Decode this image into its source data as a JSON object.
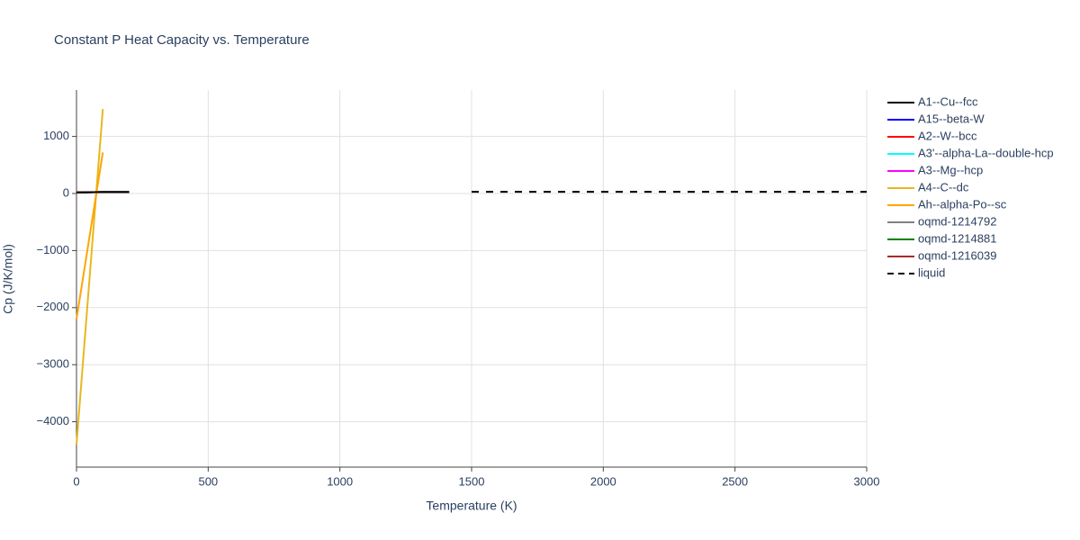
{
  "chart_data": {
    "type": "line",
    "title": "Constant P Heat Capacity vs. Temperature",
    "x_label": "Temperature (K)",
    "y_label": "Cp (J/K/mol)",
    "xlim": [
      0,
      3000
    ],
    "ylim": [
      -4795,
      1814
    ],
    "xticks": [
      0,
      500,
      1000,
      1500,
      2000,
      2500,
      3000
    ],
    "yticks": [
      {
        "value": -4000,
        "label": "−4000"
      },
      {
        "value": -3000,
        "label": "−3000"
      },
      {
        "value": -2000,
        "label": "−2000"
      },
      {
        "value": -1000,
        "label": "−1000"
      },
      0,
      1000
    ],
    "grid": true,
    "legend": "right",
    "series": [
      {
        "name": "A1--Cu--fcc",
        "color": "#000000",
        "x": [
          0,
          100,
          200
        ],
        "values": [
          20,
          25,
          26
        ]
      },
      {
        "name": "A15--beta-W",
        "color": "#0000ff",
        "x": [
          0,
          100,
          200
        ],
        "values": [
          20,
          25,
          26
        ]
      },
      {
        "name": "A2--W--bcc",
        "color": "#ff0000",
        "x": [
          0,
          100,
          200
        ],
        "values": [
          20,
          25,
          26
        ]
      },
      {
        "name": "A3'--alpha-La--double-hcp",
        "color": "#00ffff",
        "x": [
          0,
          100,
          200
        ],
        "values": [
          20,
          25,
          26
        ]
      },
      {
        "name": "A3--Mg--hcp",
        "color": "#ff00ff",
        "x": [
          0,
          100,
          200
        ],
        "values": [
          20,
          25,
          26
        ]
      },
      {
        "name": "A4--C--dc",
        "color": "#e6b820",
        "x": [
          0,
          100
        ],
        "values": [
          -4400,
          1480
        ]
      },
      {
        "name": "Ah--alpha-Po--sc",
        "color": "#ffa500",
        "x": [
          0,
          100
        ],
        "values": [
          -2200,
          720
        ]
      },
      {
        "name": "oqmd-1214792",
        "color": "#808080",
        "x": [
          0,
          100,
          200
        ],
        "values": [
          20,
          25,
          26
        ]
      },
      {
        "name": "oqmd-1214881",
        "color": "#008000",
        "x": [
          0,
          100,
          200
        ],
        "values": [
          20,
          25,
          26
        ]
      },
      {
        "name": "oqmd-1216039",
        "color": "#a52a2a",
        "x": [
          0,
          100,
          200
        ],
        "values": [
          20,
          25,
          26
        ]
      },
      {
        "name": "liquid",
        "color": "#000000",
        "dash": "dash",
        "x": [
          1500,
          3000
        ],
        "values": [
          30,
          30
        ]
      }
    ]
  }
}
